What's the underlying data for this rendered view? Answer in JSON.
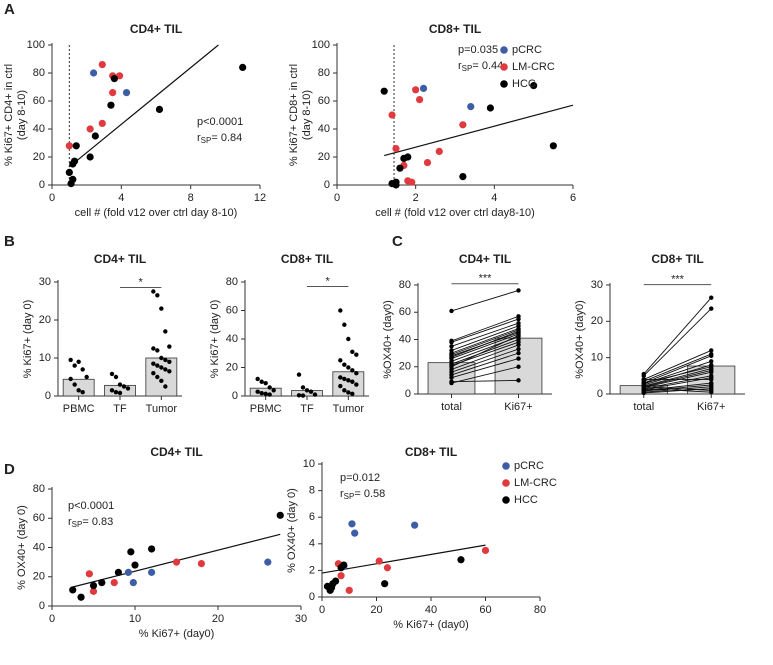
{
  "panel_labels": [
    "A",
    "B",
    "C",
    "D"
  ],
  "chart_data": [
    {
      "type": "scatter",
      "title": "CD4+ TIL",
      "x_label": "cell # (fold v12 over ctrl day 8-10)",
      "y_label": [
        "% Ki67+ CD4+ in ctrl",
        "(day 8-10)"
      ],
      "xlim": [
        0,
        12
      ],
      "xticks": [
        0,
        4,
        8,
        12
      ],
      "ylim": [
        0,
        100
      ],
      "yticks": [
        0,
        20,
        40,
        60,
        80,
        100
      ],
      "threshold_x": 1,
      "fit": {
        "x": [
          1,
          9.6
        ],
        "y": [
          13,
          100
        ]
      },
      "annotations": {
        "p": "p<0.0001",
        "r": "r",
        "r_sub": "SP",
        "r_value": "= 0.84"
      },
      "legend": false,
      "series": [
        {
          "color": "#3d5ea6",
          "x": [
            2.4,
            4.3
          ],
          "values": [
            80,
            66
          ]
        },
        {
          "color": "#e0393e",
          "x": [
            2.9,
            3.5,
            3.9,
            3.5,
            1.0,
            2.2,
            2.9
          ],
          "values": [
            86,
            78,
            78,
            66,
            28,
            40,
            44
          ]
        },
        {
          "color": "#000000",
          "x": [
            11,
            6.2,
            3.6,
            3.4,
            1.4,
            2.2,
            1.3,
            1.2,
            1.0,
            1.2,
            1.1,
            2.5
          ],
          "values": [
            84,
            54,
            76,
            57,
            28,
            20,
            17,
            15,
            9,
            4,
            1,
            35
          ]
        }
      ]
    },
    {
      "type": "scatter",
      "title": "CD8+ TIL",
      "x_label": "cell # (fold v12 over ctrl day8-10)",
      "y_label": [
        "% Ki67+ CD8+ in ctrl",
        "(day 8-10)"
      ],
      "xlim": [
        0,
        6
      ],
      "xticks": [
        0,
        2,
        4,
        6
      ],
      "ylim": [
        0,
        100
      ],
      "yticks": [
        0,
        20,
        40,
        60,
        80,
        100
      ],
      "threshold_x": 1.45,
      "fit": {
        "x": [
          1.2,
          6
        ],
        "y": [
          21,
          57
        ]
      },
      "annotations": {
        "p": "p=0.035",
        "r": "r",
        "r_sub": "SP",
        "r_value": "= 0.44"
      },
      "legend": true,
      "series": [
        {
          "name": "pCRC",
          "color": "#3d5ea6",
          "x": [
            2.2,
            3.4
          ],
          "values": [
            69,
            56
          ]
        },
        {
          "name": "LM-CRC",
          "color": "#e0393e",
          "x": [
            1.4,
            1.5,
            2.1,
            2.0,
            3.2,
            2.6,
            2.3,
            1.7,
            1.8,
            1.9
          ],
          "values": [
            50,
            26,
            61,
            68,
            43,
            24,
            16,
            14,
            3,
            2
          ]
        },
        {
          "name": "HCC",
          "color": "#000000",
          "x": [
            1.2,
            1.4,
            1.5,
            1.7,
            1.8,
            1.6,
            3.9,
            5.0,
            5.5,
            3.2,
            1.5
          ],
          "values": [
            67,
            1,
            0,
            19,
            20,
            12,
            55,
            71,
            28,
            6,
            2
          ]
        }
      ]
    },
    {
      "type": "bar",
      "title": "CD4+ TIL",
      "y_label": [
        "% Ki67+ (day 0)"
      ],
      "categories": [
        "PBMC",
        "TF",
        "Tumor"
      ],
      "values": [
        4.4,
        2.8,
        10
      ],
      "color": "#d9d9d9",
      "ylim": [
        0,
        30
      ],
      "yticks": [
        0,
        10,
        20,
        30
      ],
      "points": [
        [
          9.5,
          8,
          9,
          7,
          5,
          4.5,
          3,
          1.5,
          1
        ],
        [
          5.8,
          5,
          3,
          2.5,
          2,
          1.5,
          1,
          0.8
        ],
        [
          27.5,
          26.5,
          23,
          17,
          13,
          12.5,
          12,
          10,
          9.5,
          9,
          8.5,
          8,
          7.5,
          7,
          6.5,
          6,
          5,
          4,
          2.5
        ]
      ],
      "significance": {
        "label": "*",
        "from": 1,
        "to": 2,
        "y": 27.5
      }
    },
    {
      "type": "bar",
      "title": "CD8+ TIL",
      "y_label": [
        "% Ki67+ (day 0)"
      ],
      "categories": [
        "PBMC",
        "TF",
        "Tumor"
      ],
      "values": [
        5.5,
        3.8,
        17
      ],
      "color": "#d9d9d9",
      "ylim": [
        0,
        80
      ],
      "yticks": [
        0,
        20,
        40,
        60,
        80
      ],
      "points": [
        [
          12,
          10,
          9,
          6,
          4,
          3,
          2,
          1.5,
          1
        ],
        [
          15,
          6,
          4,
          3,
          1,
          0.5,
          0.3
        ],
        [
          60,
          50,
          40,
          31,
          29,
          25,
          22,
          20,
          18,
          16,
          13,
          12,
          11,
          10,
          8,
          7,
          4,
          2.5,
          1.5
        ]
      ],
      "significance": {
        "label": "*",
        "from": 1,
        "to": 2,
        "y": 74
      }
    },
    {
      "type": "paired",
      "title": "CD4+ TIL",
      "y_label": [
        "%OX40+ (day0)"
      ],
      "categories": [
        "total",
        "Ki67+"
      ],
      "values": [
        23,
        41
      ],
      "color": "#d9d9d9",
      "ylim": [
        0,
        80
      ],
      "yticks": [
        0,
        20,
        40,
        60,
        80
      ],
      "points": [
        [
          61,
          39,
          38,
          35,
          32,
          30,
          29,
          28,
          26,
          24,
          22,
          21,
          18,
          16,
          14,
          12,
          9,
          8,
          27,
          20
        ],
        [
          76,
          57,
          55,
          52,
          50,
          48,
          47,
          45,
          44,
          42,
          40,
          38,
          36,
          33,
          30,
          26,
          10,
          20,
          46,
          43
        ]
      ],
      "significance": {
        "label": "***",
        "from": 0,
        "to": 1,
        "y": 78
      }
    },
    {
      "type": "paired",
      "title": "CD8+ TIL",
      "y_label": [
        "%OX40+ (day0)"
      ],
      "categories": [
        "total",
        "Ki67+"
      ],
      "values": [
        2.3,
        7.7
      ],
      "color": "#d9d9d9",
      "ylim": [
        0,
        30
      ],
      "yticks": [
        0,
        10,
        20,
        30
      ],
      "points": [
        [
          5.5,
          5,
          4,
          3.5,
          3,
          2.8,
          2.5,
          2.2,
          2,
          1.8,
          1.5,
          1.2,
          1,
          0.8,
          0.5,
          0.3,
          2,
          1.5,
          3,
          4
        ],
        [
          26.5,
          23.5,
          12,
          11,
          10.5,
          9,
          8,
          7,
          6.5,
          6,
          5,
          4.5,
          3,
          2.5,
          2,
          1.5,
          1,
          0.5,
          7.5,
          4
        ]
      ],
      "significance": {
        "label": "***",
        "from": 0,
        "to": 1,
        "y": 29
      }
    },
    {
      "type": "scatter",
      "title": "CD4+ TIL",
      "x_label": "% Ki67+ (day0)",
      "y_label": [
        "% OX40+ (day 0)"
      ],
      "xlim": [
        0,
        30
      ],
      "xticks": [
        0,
        10,
        20,
        30
      ],
      "ylim": [
        0,
        80
      ],
      "yticks": [
        0,
        20,
        40,
        60,
        80
      ],
      "fit": {
        "x": [
          2.5,
          27.5
        ],
        "y": [
          13,
          49
        ]
      },
      "annotations": {
        "p": "p<0.0001",
        "r": "r",
        "r_sub": "SP",
        "r_value": "= 0.83"
      },
      "legend": false,
      "series": [
        {
          "color": "#3d5ea6",
          "x": [
            9.2,
            9.8,
            12,
            26
          ],
          "values": [
            23,
            16,
            23,
            30
          ]
        },
        {
          "color": "#e0393e",
          "x": [
            4.5,
            7.5,
            5,
            15,
            18
          ],
          "values": [
            22,
            16,
            10,
            30,
            29
          ]
        },
        {
          "color": "#000000",
          "x": [
            2.5,
            3.5,
            5,
            6,
            8,
            9.5,
            10,
            12,
            27.5
          ],
          "values": [
            11,
            6,
            14,
            16,
            23,
            37,
            28,
            39,
            62
          ]
        }
      ]
    },
    {
      "type": "scatter",
      "title": "CD8+ TIL",
      "x_label": "% Ki67+ (day0)",
      "y_label": [
        "% OX40+ (day 0)"
      ],
      "xlim": [
        0,
        80
      ],
      "xticks": [
        0,
        20,
        40,
        60,
        80
      ],
      "ylim": [
        0,
        10
      ],
      "yticks": [
        0,
        2,
        4,
        6,
        8,
        10
      ],
      "fit": {
        "x": [
          0,
          60
        ],
        "y": [
          1.8,
          3.9
        ]
      },
      "annotations": {
        "p": "p=0.012",
        "r": "r",
        "r_sub": "SP",
        "r_value": "= 0.58"
      },
      "legend": true,
      "series": [
        {
          "name": "pCRC",
          "color": "#3d5ea6",
          "x": [
            11,
            12,
            34,
            8
          ],
          "values": [
            5.5,
            4.8,
            5.4,
            2.3
          ]
        },
        {
          "name": "LM-CRC",
          "color": "#e0393e",
          "x": [
            6,
            7,
            10,
            21,
            24,
            60
          ],
          "values": [
            2.5,
            1.6,
            0.5,
            2.7,
            2.2,
            3.5
          ]
        },
        {
          "name": "HCC",
          "color": "#000000",
          "x": [
            2,
            3,
            3.5,
            4,
            5,
            7,
            8,
            23,
            51
          ],
          "values": [
            0.8,
            0.5,
            0.7,
            1,
            1.2,
            2.2,
            2.4,
            1,
            2.8
          ]
        }
      ]
    }
  ]
}
